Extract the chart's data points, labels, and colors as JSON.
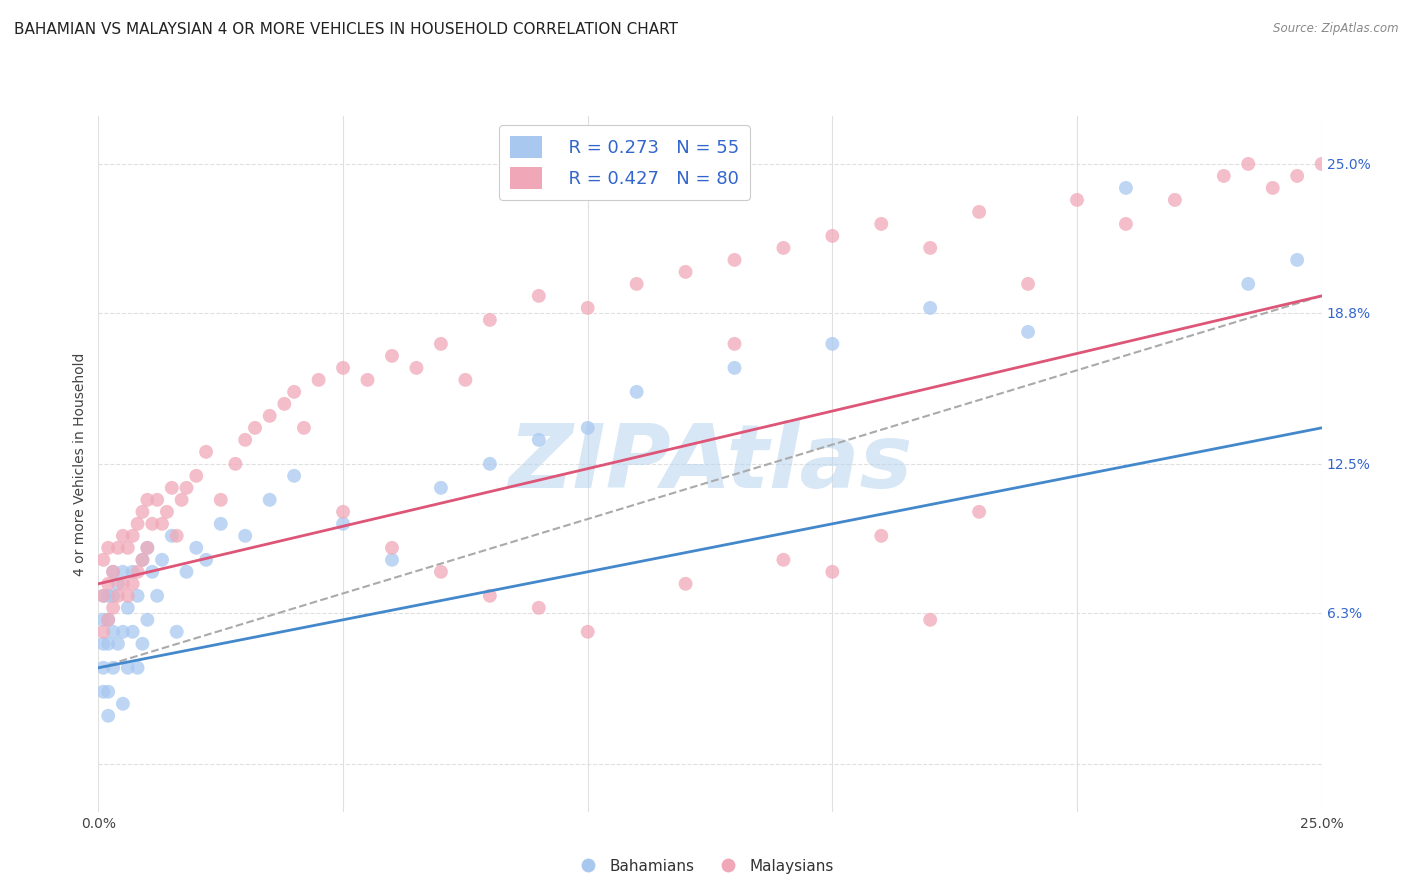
{
  "title": "BAHAMIAN VS MALAYSIAN 4 OR MORE VEHICLES IN HOUSEHOLD CORRELATION CHART",
  "source": "Source: ZipAtlas.com",
  "ylabel": "4 or more Vehicles in Household",
  "xlim": [
    0.0,
    0.25
  ],
  "ylim": [
    -0.02,
    0.27
  ],
  "right_ytick_vals": [
    0.0,
    0.063,
    0.125,
    0.188,
    0.25
  ],
  "right_yticklabels": [
    "",
    "6.3%",
    "12.5%",
    "18.8%",
    "25.0%"
  ],
  "watermark": "ZIPAtlas",
  "watermark_color": "#b8d4ee",
  "legend_r1": "R = 0.273",
  "legend_n1": "N = 55",
  "legend_r2": "R = 0.427",
  "legend_n2": "N = 80",
  "bahamian_color": "#a8c8f0",
  "malaysian_color": "#f0a8b8",
  "bahamian_line_color": "#4488cc",
  "malaysian_line_color": "#dd5577",
  "dash_color": "#aaaaaa",
  "grid_color": "#e0e0e0",
  "bah_x": [
    0.001,
    0.001,
    0.001,
    0.001,
    0.001,
    0.002,
    0.002,
    0.002,
    0.002,
    0.002,
    0.003,
    0.003,
    0.003,
    0.003,
    0.004,
    0.004,
    0.005,
    0.005,
    0.005,
    0.006,
    0.006,
    0.007,
    0.007,
    0.008,
    0.008,
    0.009,
    0.009,
    0.01,
    0.01,
    0.011,
    0.012,
    0.013,
    0.015,
    0.016,
    0.018,
    0.02,
    0.022,
    0.025,
    0.03,
    0.035,
    0.04,
    0.05,
    0.06,
    0.07,
    0.08,
    0.09,
    0.1,
    0.11,
    0.13,
    0.15,
    0.17,
    0.19,
    0.21,
    0.235,
    0.245
  ],
  "bah_y": [
    0.03,
    0.04,
    0.05,
    0.06,
    0.07,
    0.02,
    0.03,
    0.05,
    0.06,
    0.07,
    0.04,
    0.055,
    0.07,
    0.08,
    0.05,
    0.075,
    0.025,
    0.055,
    0.08,
    0.04,
    0.065,
    0.055,
    0.08,
    0.04,
    0.07,
    0.05,
    0.085,
    0.06,
    0.09,
    0.08,
    0.07,
    0.085,
    0.095,
    0.055,
    0.08,
    0.09,
    0.085,
    0.1,
    0.095,
    0.11,
    0.12,
    0.1,
    0.085,
    0.115,
    0.125,
    0.135,
    0.14,
    0.155,
    0.165,
    0.175,
    0.19,
    0.18,
    0.24,
    0.2,
    0.21
  ],
  "mal_x": [
    0.001,
    0.001,
    0.001,
    0.002,
    0.002,
    0.002,
    0.003,
    0.003,
    0.004,
    0.004,
    0.005,
    0.005,
    0.006,
    0.006,
    0.007,
    0.007,
    0.008,
    0.008,
    0.009,
    0.009,
    0.01,
    0.01,
    0.011,
    0.012,
    0.013,
    0.014,
    0.015,
    0.016,
    0.017,
    0.018,
    0.02,
    0.022,
    0.025,
    0.028,
    0.03,
    0.032,
    0.035,
    0.038,
    0.04,
    0.042,
    0.045,
    0.05,
    0.055,
    0.06,
    0.065,
    0.07,
    0.075,
    0.08,
    0.09,
    0.1,
    0.11,
    0.12,
    0.13,
    0.14,
    0.15,
    0.16,
    0.17,
    0.18,
    0.19,
    0.2,
    0.21,
    0.22,
    0.23,
    0.235,
    0.24,
    0.245,
    0.25,
    0.13,
    0.15,
    0.17,
    0.05,
    0.06,
    0.07,
    0.08,
    0.09,
    0.1,
    0.12,
    0.14,
    0.16,
    0.18
  ],
  "mal_y": [
    0.055,
    0.07,
    0.085,
    0.06,
    0.075,
    0.09,
    0.065,
    0.08,
    0.07,
    0.09,
    0.075,
    0.095,
    0.07,
    0.09,
    0.075,
    0.095,
    0.08,
    0.1,
    0.085,
    0.105,
    0.09,
    0.11,
    0.1,
    0.11,
    0.1,
    0.105,
    0.115,
    0.095,
    0.11,
    0.115,
    0.12,
    0.13,
    0.11,
    0.125,
    0.135,
    0.14,
    0.145,
    0.15,
    0.155,
    0.14,
    0.16,
    0.165,
    0.16,
    0.17,
    0.165,
    0.175,
    0.16,
    0.185,
    0.195,
    0.19,
    0.2,
    0.205,
    0.21,
    0.215,
    0.22,
    0.225,
    0.215,
    0.23,
    0.2,
    0.235,
    0.225,
    0.235,
    0.245,
    0.25,
    0.24,
    0.245,
    0.25,
    0.175,
    0.08,
    0.06,
    0.105,
    0.09,
    0.08,
    0.07,
    0.065,
    0.055,
    0.075,
    0.085,
    0.095,
    0.105
  ]
}
